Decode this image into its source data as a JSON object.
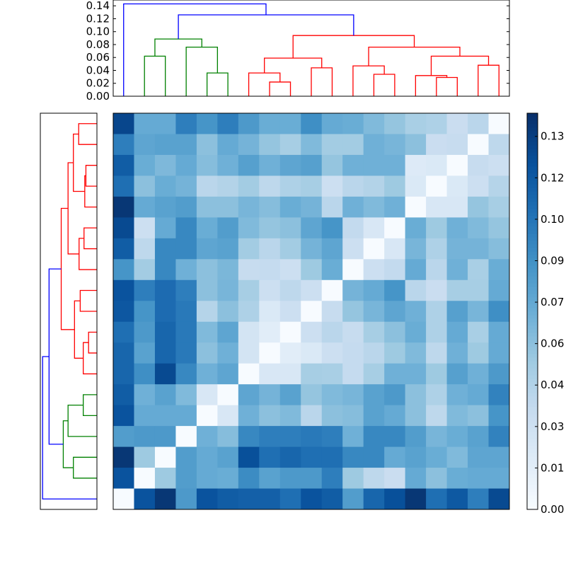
{
  "chart_data": [
    {
      "type": "heatmap",
      "title": "",
      "row_order": "top-to-bottom (leaf 18 at top, leaf 0 at bottom)",
      "col_order": "left-to-right (leaf 0 to leaf 18)",
      "colormap": "Blues",
      "vmin": 0.0,
      "vmax": 0.1386,
      "values": [
        [
          0.127,
          0.072,
          0.072,
          0.097,
          0.085,
          0.097,
          0.082,
          0.07,
          0.07,
          0.088,
          0.072,
          0.07,
          0.062,
          0.055,
          0.047,
          0.045,
          0.032,
          0.04,
          0.0
        ],
        [
          0.097,
          0.075,
          0.077,
          0.077,
          0.058,
          0.072,
          0.066,
          0.055,
          0.048,
          0.062,
          0.05,
          0.05,
          0.068,
          0.065,
          0.058,
          0.032,
          0.034,
          0.0,
          0.038
        ],
        [
          0.115,
          0.07,
          0.063,
          0.072,
          0.06,
          0.068,
          0.078,
          0.068,
          0.075,
          0.078,
          0.055,
          0.068,
          0.068,
          0.068,
          0.018,
          0.02,
          0.0,
          0.034,
          0.03
        ],
        [
          0.105,
          0.058,
          0.07,
          0.066,
          0.04,
          0.043,
          0.05,
          0.038,
          0.045,
          0.048,
          0.03,
          0.04,
          0.043,
          0.052,
          0.02,
          0.0,
          0.02,
          0.03,
          0.042
        ],
        [
          0.135,
          0.072,
          0.077,
          0.08,
          0.058,
          0.058,
          0.065,
          0.06,
          0.07,
          0.066,
          0.04,
          0.068,
          0.062,
          0.068,
          0.0,
          0.022,
          0.022,
          0.055,
          0.048
        ],
        [
          0.125,
          0.03,
          0.072,
          0.092,
          0.07,
          0.08,
          0.062,
          0.055,
          0.058,
          0.075,
          0.085,
          0.036,
          0.022,
          0.0,
          0.07,
          0.052,
          0.068,
          0.062,
          0.055
        ],
        [
          0.115,
          0.038,
          0.092,
          0.092,
          0.075,
          0.077,
          0.05,
          0.04,
          0.05,
          0.066,
          0.075,
          0.03,
          0.0,
          0.022,
          0.065,
          0.045,
          0.066,
          0.066,
          0.06
        ],
        [
          0.085,
          0.05,
          0.092,
          0.068,
          0.058,
          0.064,
          0.034,
          0.035,
          0.03,
          0.052,
          0.07,
          0.0,
          0.03,
          0.036,
          0.072,
          0.04,
          0.068,
          0.047,
          0.07
        ],
        [
          0.12,
          0.097,
          0.107,
          0.097,
          0.058,
          0.065,
          0.048,
          0.03,
          0.038,
          0.03,
          0.0,
          0.066,
          0.072,
          0.085,
          0.04,
          0.032,
          0.048,
          0.048,
          0.072
        ],
        [
          0.118,
          0.085,
          0.107,
          0.1,
          0.042,
          0.058,
          0.045,
          0.02,
          0.03,
          0.0,
          0.034,
          0.055,
          0.065,
          0.075,
          0.068,
          0.045,
          0.078,
          0.065,
          0.088
        ],
        [
          0.105,
          0.082,
          0.11,
          0.1,
          0.062,
          0.075,
          0.025,
          0.015,
          0.0,
          0.03,
          0.04,
          0.034,
          0.048,
          0.058,
          0.07,
          0.045,
          0.072,
          0.047,
          0.072
        ],
        [
          0.11,
          0.077,
          0.11,
          0.1,
          0.058,
          0.068,
          0.025,
          0.0,
          0.015,
          0.02,
          0.03,
          0.035,
          0.04,
          0.052,
          0.062,
          0.038,
          0.068,
          0.052,
          0.072
        ],
        [
          0.11,
          0.088,
          0.125,
          0.092,
          0.068,
          0.075,
          0.0,
          0.022,
          0.022,
          0.048,
          0.047,
          0.035,
          0.048,
          0.068,
          0.068,
          0.052,
          0.078,
          0.068,
          0.082
        ],
        [
          0.115,
          0.068,
          0.077,
          0.062,
          0.022,
          0.0,
          0.075,
          0.066,
          0.077,
          0.055,
          0.062,
          0.065,
          0.077,
          0.082,
          0.058,
          0.045,
          0.068,
          0.072,
          0.095
        ],
        [
          0.12,
          0.072,
          0.072,
          0.072,
          0.0,
          0.022,
          0.068,
          0.058,
          0.062,
          0.04,
          0.058,
          0.06,
          0.077,
          0.072,
          0.058,
          0.038,
          0.062,
          0.058,
          0.085
        ],
        [
          0.08,
          0.082,
          0.082,
          0.0,
          0.068,
          0.06,
          0.092,
          0.097,
          0.097,
          0.1,
          0.097,
          0.068,
          0.092,
          0.092,
          0.08,
          0.065,
          0.07,
          0.077,
          0.095
        ],
        [
          0.135,
          0.052,
          0.0,
          0.08,
          0.072,
          0.077,
          0.122,
          0.105,
          0.11,
          0.105,
          0.105,
          0.092,
          0.092,
          0.072,
          0.077,
          0.07,
          0.062,
          0.075,
          0.075
        ],
        [
          0.12,
          0.0,
          0.052,
          0.08,
          0.072,
          0.07,
          0.09,
          0.077,
          0.082,
          0.082,
          0.097,
          0.052,
          0.038,
          0.032,
          0.072,
          0.058,
          0.07,
          0.072,
          0.072
        ],
        [
          0.0,
          0.12,
          0.135,
          0.082,
          0.12,
          0.115,
          0.113,
          0.113,
          0.105,
          0.12,
          0.115,
          0.08,
          0.11,
          0.122,
          0.135,
          0.105,
          0.117,
          0.097,
          0.125
        ]
      ],
      "colorbar": {
        "ticks": [
          {
            "value": 0.0,
            "label": "0.00"
          },
          {
            "value": 0.0145,
            "label": "0.01"
          },
          {
            "value": 0.029,
            "label": "0.03"
          },
          {
            "value": 0.0435,
            "label": "0.04"
          },
          {
            "value": 0.058,
            "label": "0.06"
          },
          {
            "value": 0.0725,
            "label": "0.07"
          },
          {
            "value": 0.087,
            "label": "0.09"
          },
          {
            "value": 0.1015,
            "label": "0.10"
          },
          {
            "value": 0.116,
            "label": "0.12"
          },
          {
            "value": 0.1305,
            "label": "0.13"
          }
        ]
      }
    },
    {
      "type": "dendrogram",
      "orientation": "top",
      "n_leaves": 19,
      "ylim": [
        0,
        0.149
      ],
      "yticks": [
        {
          "value": 0.0,
          "label": "0.00"
        },
        {
          "value": 0.02,
          "label": "0.02"
        },
        {
          "value": 0.04,
          "label": "0.04"
        },
        {
          "value": 0.06,
          "label": "0.06"
        },
        {
          "value": 0.08,
          "label": "0.08"
        },
        {
          "value": 0.1,
          "label": "0.10"
        },
        {
          "value": 0.12,
          "label": "0.12"
        },
        {
          "value": 0.14,
          "label": "0.14"
        }
      ],
      "colors": {
        "blue": "#0000ff",
        "green": "#008000",
        "red": "#ff0000"
      },
      "merges": [
        {
          "id": 19,
          "a": 4,
          "b": 5,
          "height": 0.036,
          "color": "green"
        },
        {
          "id": 20,
          "a": 1,
          "b": 2,
          "height": 0.062,
          "color": "green"
        },
        {
          "id": 21,
          "a": 3,
          "b": 19,
          "height": 0.076,
          "color": "green"
        },
        {
          "id": 22,
          "a": 20,
          "b": 21,
          "height": 0.0886,
          "color": "green"
        },
        {
          "id": 23,
          "a": 7,
          "b": 8,
          "height": 0.022,
          "color": "red"
        },
        {
          "id": 24,
          "a": 6,
          "b": 23,
          "height": 0.036,
          "color": "red"
        },
        {
          "id": 25,
          "a": 9,
          "b": 10,
          "height": 0.044,
          "color": "red"
        },
        {
          "id": 26,
          "a": 24,
          "b": 25,
          "height": 0.059,
          "color": "red"
        },
        {
          "id": 27,
          "a": 12,
          "b": 13,
          "height": 0.034,
          "color": "red"
        },
        {
          "id": 28,
          "a": 11,
          "b": 27,
          "height": 0.047,
          "color": "red"
        },
        {
          "id": 29,
          "a": 15,
          "b": 16,
          "height": 0.029,
          "color": "red"
        },
        {
          "id": 30,
          "a": 14,
          "b": 29,
          "height": 0.032,
          "color": "red"
        },
        {
          "id": 31,
          "a": 17,
          "b": 18,
          "height": 0.048,
          "color": "red"
        },
        {
          "id": 32,
          "a": 30,
          "b": 31,
          "height": 0.062,
          "color": "red"
        },
        {
          "id": 33,
          "a": 28,
          "b": 32,
          "height": 0.076,
          "color": "red"
        },
        {
          "id": 34,
          "a": 26,
          "b": 33,
          "height": 0.094,
          "color": "red"
        },
        {
          "id": 35,
          "a": 22,
          "b": 34,
          "height": 0.126,
          "color": "blue"
        },
        {
          "id": 36,
          "a": 0,
          "b": 35,
          "height": 0.143,
          "color": "blue"
        }
      ]
    },
    {
      "type": "dendrogram",
      "orientation": "left",
      "n_leaves": 19,
      "xlim": [
        0.149,
        0
      ],
      "same_tree_as": "top"
    }
  ]
}
